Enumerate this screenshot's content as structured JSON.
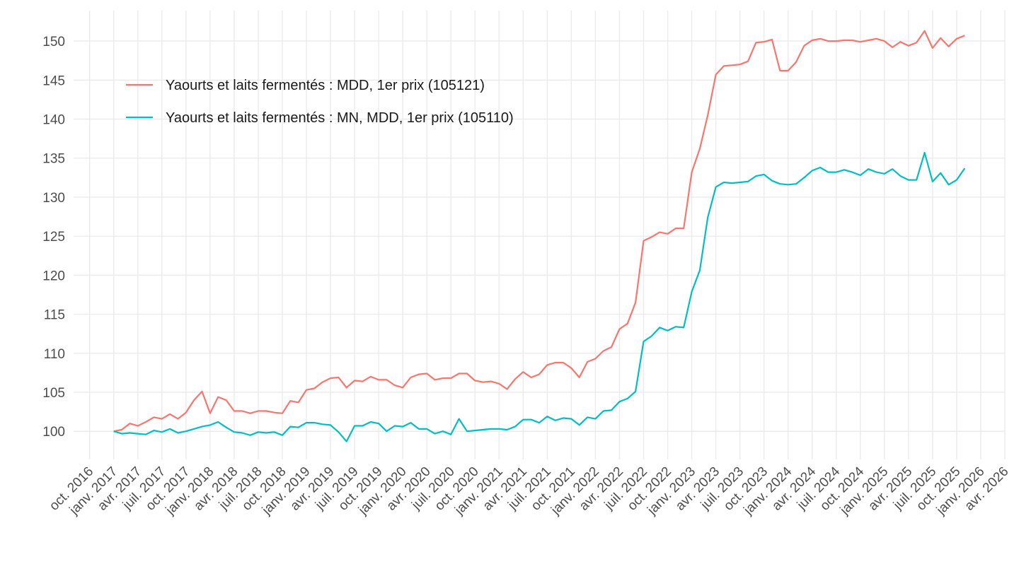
{
  "chart_data": {
    "type": "line",
    "x": [
      "2017-01",
      "2017-02",
      "2017-03",
      "2017-04",
      "2017-05",
      "2017-06",
      "2017-07",
      "2017-08",
      "2017-09",
      "2017-10",
      "2017-11",
      "2017-12",
      "2018-01",
      "2018-02",
      "2018-03",
      "2018-04",
      "2018-05",
      "2018-06",
      "2018-07",
      "2018-08",
      "2018-09",
      "2018-10",
      "2018-11",
      "2018-12",
      "2019-01",
      "2019-02",
      "2019-03",
      "2019-04",
      "2019-05",
      "2019-06",
      "2019-07",
      "2019-08",
      "2019-09",
      "2019-10",
      "2019-11",
      "2019-12",
      "2020-01",
      "2020-02",
      "2020-03",
      "2020-04",
      "2020-05",
      "2020-06",
      "2020-07",
      "2020-08",
      "2020-09",
      "2020-10",
      "2020-11",
      "2020-12",
      "2021-01",
      "2021-02",
      "2021-03",
      "2021-04",
      "2021-05",
      "2021-06",
      "2021-07",
      "2021-08",
      "2021-09",
      "2021-10",
      "2021-11",
      "2021-12",
      "2022-01",
      "2022-02",
      "2022-03",
      "2022-04",
      "2022-05",
      "2022-06",
      "2022-07",
      "2022-08",
      "2022-09",
      "2022-10",
      "2022-11",
      "2022-12",
      "2023-01",
      "2023-02",
      "2023-03",
      "2023-04",
      "2023-05",
      "2023-06",
      "2023-07",
      "2023-08",
      "2023-09",
      "2023-10",
      "2023-11",
      "2023-12",
      "2024-01",
      "2024-02",
      "2024-03",
      "2024-04",
      "2024-05",
      "2024-06",
      "2024-07",
      "2024-08",
      "2024-09",
      "2024-10",
      "2024-11",
      "2024-12",
      "2025-01",
      "2025-02",
      "2025-03",
      "2025-04",
      "2025-05",
      "2025-06",
      "2025-07",
      "2025-08",
      "2025-09",
      "2025-10",
      "2025-11"
    ],
    "series": [
      {
        "name": "Yaourts et laits fermentés : MDD, 1er prix (105121)",
        "color": "#F8766D",
        "values": [
          100.0,
          100.2,
          101.0,
          100.7,
          101.2,
          101.8,
          101.6,
          102.2,
          101.6,
          102.4,
          104.0,
          105.1,
          102.3,
          104.4,
          104.0,
          102.6,
          102.6,
          102.3,
          102.6,
          102.6,
          102.4,
          102.3,
          103.9,
          103.7,
          105.3,
          105.5,
          106.3,
          106.8,
          106.9,
          105.6,
          106.5,
          106.4,
          107.0,
          106.6,
          106.6,
          105.9,
          105.6,
          106.9,
          107.3,
          107.4,
          106.6,
          106.8,
          106.8,
          107.4,
          107.4,
          106.5,
          106.3,
          106.4,
          106.1,
          105.4,
          106.7,
          107.6,
          106.9,
          107.3,
          108.5,
          108.8,
          108.8,
          108.1,
          106.9,
          108.9,
          109.3,
          110.3,
          110.8,
          113.1,
          113.8,
          116.5,
          124.4,
          124.9,
          125.5,
          125.3,
          126.0,
          126.0,
          133.2,
          136.2,
          140.5,
          145.7,
          146.8,
          146.9,
          147.0,
          147.4,
          149.8,
          149.9,
          150.2,
          146.2,
          146.2,
          147.3,
          149.4,
          150.1,
          150.3,
          150.0,
          150.0,
          150.1,
          150.1,
          149.9,
          150.1,
          150.3,
          150.0,
          149.2,
          149.9,
          149.4,
          149.8,
          151.3,
          149.1,
          150.4,
          149.3,
          150.3,
          150.7
        ]
      },
      {
        "name": "Yaourts et laits fermentés : MN, MDD, 1er prix (105110)",
        "color": "#00BFC4",
        "values": [
          100.0,
          99.7,
          99.8,
          99.7,
          99.6,
          100.1,
          99.9,
          100.3,
          99.8,
          100.0,
          100.3,
          100.6,
          100.8,
          101.2,
          100.5,
          99.9,
          99.8,
          99.5,
          99.9,
          99.8,
          99.9,
          99.5,
          100.6,
          100.5,
          101.1,
          101.1,
          100.9,
          100.8,
          99.9,
          98.7,
          100.7,
          100.7,
          101.2,
          101.0,
          100.0,
          100.7,
          100.6,
          101.1,
          100.3,
          100.3,
          99.7,
          100.0,
          99.6,
          101.6,
          100.0,
          100.1,
          100.2,
          100.3,
          100.3,
          100.2,
          100.6,
          101.5,
          101.5,
          101.1,
          101.9,
          101.4,
          101.7,
          101.6,
          100.8,
          101.8,
          101.6,
          102.6,
          102.7,
          103.8,
          104.2,
          105.1,
          111.5,
          112.2,
          113.3,
          112.9,
          113.4,
          113.3,
          117.9,
          120.6,
          127.4,
          131.3,
          131.9,
          131.8,
          131.9,
          132.0,
          132.7,
          132.9,
          132.1,
          131.7,
          131.6,
          131.7,
          132.5,
          133.4,
          133.8,
          133.2,
          133.2,
          133.5,
          133.2,
          132.8,
          133.6,
          133.2,
          133.0,
          133.6,
          132.7,
          132.2,
          132.2,
          135.7,
          132.0,
          133.1,
          131.6,
          132.2,
          133.7
        ]
      }
    ],
    "xlim": [
      "2016-08",
      "2026-04"
    ],
    "xticks": [
      {
        "value": "2016-10",
        "label": "oct. 2016"
      },
      {
        "value": "2017-01",
        "label": "janv. 2017"
      },
      {
        "value": "2017-04",
        "label": "avr. 2017"
      },
      {
        "value": "2017-07",
        "label": "juil. 2017"
      },
      {
        "value": "2017-10",
        "label": "oct. 2017"
      },
      {
        "value": "2018-01",
        "label": "janv. 2018"
      },
      {
        "value": "2018-04",
        "label": "avr. 2018"
      },
      {
        "value": "2018-07",
        "label": "juil. 2018"
      },
      {
        "value": "2018-10",
        "label": "oct. 2018"
      },
      {
        "value": "2019-01",
        "label": "janv. 2019"
      },
      {
        "value": "2019-04",
        "label": "avr. 2019"
      },
      {
        "value": "2019-07",
        "label": "juil. 2019"
      },
      {
        "value": "2019-10",
        "label": "oct. 2019"
      },
      {
        "value": "2020-01",
        "label": "janv. 2020"
      },
      {
        "value": "2020-04",
        "label": "avr. 2020"
      },
      {
        "value": "2020-07",
        "label": "juil. 2020"
      },
      {
        "value": "2020-10",
        "label": "oct. 2020"
      },
      {
        "value": "2021-01",
        "label": "janv. 2021"
      },
      {
        "value": "2021-04",
        "label": "avr. 2021"
      },
      {
        "value": "2021-07",
        "label": "juil. 2021"
      },
      {
        "value": "2021-10",
        "label": "oct. 2021"
      },
      {
        "value": "2022-01",
        "label": "janv. 2022"
      },
      {
        "value": "2022-04",
        "label": "avr. 2022"
      },
      {
        "value": "2022-07",
        "label": "juil. 2022"
      },
      {
        "value": "2022-10",
        "label": "oct. 2022"
      },
      {
        "value": "2023-01",
        "label": "janv. 2023"
      },
      {
        "value": "2023-04",
        "label": "avr. 2023"
      },
      {
        "value": "2023-07",
        "label": "juil. 2023"
      },
      {
        "value": "2023-10",
        "label": "oct. 2023"
      },
      {
        "value": "2024-01",
        "label": "janv. 2024"
      },
      {
        "value": "2024-04",
        "label": "avr. 2024"
      },
      {
        "value": "2024-07",
        "label": "juil. 2024"
      },
      {
        "value": "2024-10",
        "label": "oct. 2024"
      },
      {
        "value": "2025-01",
        "label": "janv. 2025"
      },
      {
        "value": "2025-04",
        "label": "avr. 2025"
      },
      {
        "value": "2025-07",
        "label": "juil. 2025"
      },
      {
        "value": "2025-10",
        "label": "oct. 2025"
      },
      {
        "value": "2026-01",
        "label": "janv. 2026"
      },
      {
        "value": "2026-04",
        "label": "avr. 2026"
      }
    ],
    "ylim": [
      96.4,
      153.9
    ],
    "yticks": [
      100,
      105,
      110,
      115,
      120,
      125,
      130,
      135,
      140,
      145,
      150
    ],
    "grid": true,
    "legend": "top-left"
  }
}
